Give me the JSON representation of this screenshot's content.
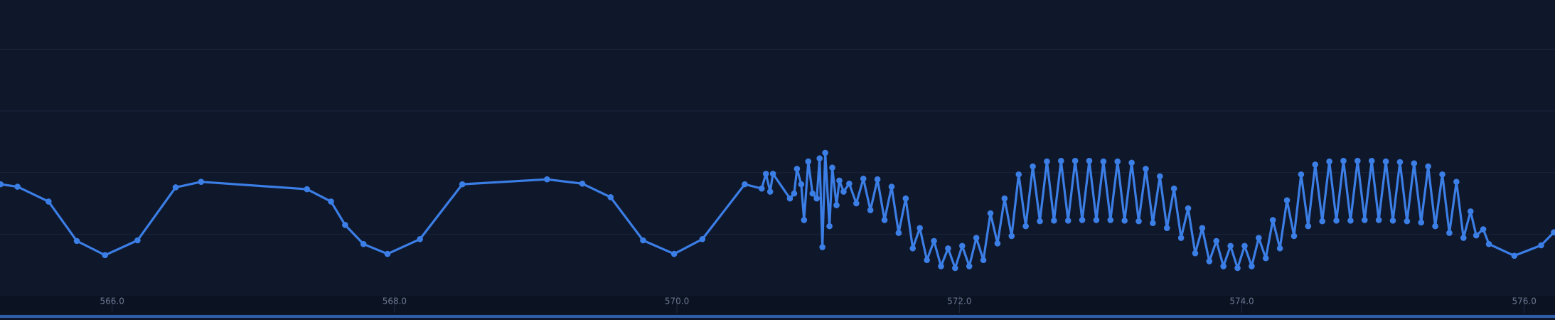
{
  "chart_data": {
    "type": "line",
    "color": "#3b7ee6",
    "xlim": [
      565.206,
      576.218
    ],
    "ylim": [
      0,
      4.8
    ],
    "xticks": [
      {
        "value": 566,
        "label": "566.0"
      },
      {
        "value": 568,
        "label": "568.0"
      },
      {
        "value": 570,
        "label": "570.0"
      },
      {
        "value": 572,
        "label": "572.0"
      },
      {
        "value": 574,
        "label": "574.0"
      },
      {
        "value": 576,
        "label": "576.0"
      }
    ],
    "ygrid": [
      1,
      2,
      3,
      4
    ],
    "markers": true,
    "x": [
      565.21,
      565.33,
      565.55,
      565.75,
      565.95,
      566.18,
      566.45,
      566.63,
      567.38,
      567.55,
      567.65,
      567.78,
      567.95,
      568.18,
      568.48,
      569.08,
      569.33,
      569.53,
      569.76,
      569.98,
      570.18,
      570.48,
      570.6,
      570.63,
      570.66,
      570.68,
      570.8,
      570.83,
      570.85,
      570.88,
      570.9,
      570.93,
      570.96,
      570.99,
      571.01,
      571.03,
      571.05,
      571.08,
      571.1,
      571.13,
      571.15,
      571.18,
      571.22,
      571.27,
      571.32,
      571.37,
      571.42,
      571.47,
      571.52,
      571.57,
      571.62,
      571.67,
      571.72,
      571.77,
      571.82,
      571.87,
      571.92,
      571.97,
      572.02,
      572.07,
      572.12,
      572.17,
      572.22,
      572.27,
      572.32,
      572.37,
      572.42,
      572.47,
      572.52,
      572.57,
      572.62,
      572.67,
      572.72,
      572.77,
      572.82,
      572.87,
      572.92,
      572.97,
      573.02,
      573.07,
      573.12,
      573.17,
      573.22,
      573.27,
      573.32,
      573.37,
      573.42,
      573.47,
      573.52,
      573.57,
      573.62,
      573.67,
      573.72,
      573.77,
      573.82,
      573.87,
      573.92,
      573.97,
      574.02,
      574.07,
      574.12,
      574.17,
      574.22,
      574.27,
      574.32,
      574.37,
      574.42,
      574.47,
      574.52,
      574.57,
      574.62,
      574.67,
      574.72,
      574.77,
      574.82,
      574.87,
      574.92,
      574.97,
      575.02,
      575.07,
      575.12,
      575.17,
      575.22,
      575.27,
      575.32,
      575.37,
      575.42,
      575.47,
      575.52,
      575.57,
      575.62,
      575.66,
      575.71,
      575.75,
      575.93,
      576.12,
      576.21
    ],
    "values": [
      1.81,
      1.77,
      1.53,
      0.89,
      0.66,
      0.9,
      1.76,
      1.85,
      1.73,
      1.53,
      1.15,
      0.84,
      0.68,
      0.92,
      1.81,
      1.89,
      1.82,
      1.6,
      0.9,
      0.68,
      0.92,
      1.81,
      1.74,
      1.98,
      1.69,
      1.98,
      1.58,
      1.66,
      2.06,
      1.81,
      1.23,
      2.18,
      1.66,
      1.58,
      2.23,
      0.79,
      2.32,
      1.13,
      2.08,
      1.47,
      1.87,
      1.69,
      1.82,
      1.5,
      1.9,
      1.39,
      1.89,
      1.23,
      1.77,
      1.02,
      1.58,
      0.77,
      1.1,
      0.58,
      0.89,
      0.48,
      0.77,
      0.45,
      0.81,
      0.48,
      0.94,
      0.58,
      1.34,
      0.85,
      1.58,
      0.97,
      1.97,
      1.13,
      2.1,
      1.21,
      2.18,
      1.22,
      2.19,
      1.22,
      2.19,
      1.23,
      2.19,
      1.23,
      2.18,
      1.23,
      2.18,
      1.22,
      2.16,
      1.21,
      2.06,
      1.18,
      1.94,
      1.1,
      1.74,
      0.94,
      1.42,
      0.69,
      1.1,
      0.56,
      0.89,
      0.48,
      0.81,
      0.45,
      0.81,
      0.48,
      0.94,
      0.61,
      1.23,
      0.77,
      1.55,
      0.97,
      1.97,
      1.13,
      2.13,
      1.21,
      2.18,
      1.22,
      2.19,
      1.22,
      2.19,
      1.23,
      2.19,
      1.23,
      2.18,
      1.22,
      2.17,
      1.21,
      2.15,
      1.19,
      2.1,
      1.13,
      1.97,
      1.02,
      1.85,
      0.94,
      1.37,
      0.98,
      1.08,
      0.84,
      0.65,
      0.82,
      1.03
    ]
  }
}
